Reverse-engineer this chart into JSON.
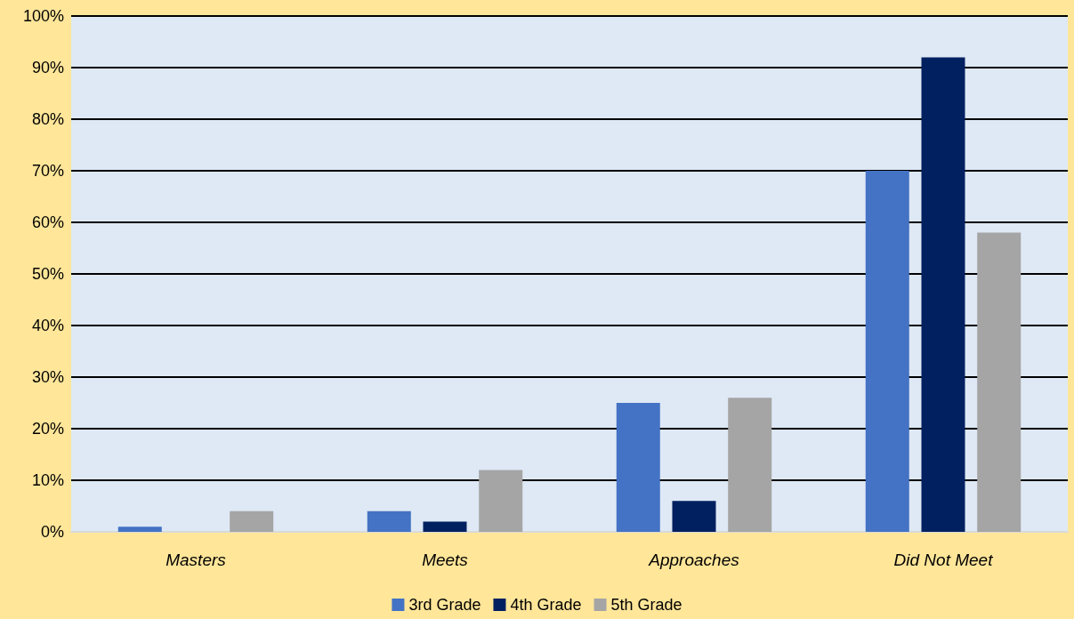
{
  "chart_data": {
    "type": "bar",
    "categories": [
      "Masters",
      "Meets",
      "Approaches",
      "Did Not Meet"
    ],
    "series": [
      {
        "name": "3rd Grade",
        "color": "#4472c4",
        "values": [
          1,
          4,
          25,
          70
        ]
      },
      {
        "name": "4th Grade",
        "color": "#002060",
        "values": [
          0,
          2,
          6,
          92
        ]
      },
      {
        "name": "5th Grade",
        "color": "#a5a5a5",
        "values": [
          4,
          12,
          26,
          58
        ]
      }
    ],
    "ylim": [
      0,
      100
    ],
    "yticks": [
      {
        "value": 0,
        "label": "0%"
      },
      {
        "value": 10,
        "label": "10%"
      },
      {
        "value": 20,
        "label": "20%"
      },
      {
        "value": 30,
        "label": "30%"
      },
      {
        "value": 40,
        "label": "40%"
      },
      {
        "value": 50,
        "label": "50%"
      },
      {
        "value": 60,
        "label": "60%"
      },
      {
        "value": 70,
        "label": "70%"
      },
      {
        "value": 80,
        "label": "80%"
      },
      {
        "value": 90,
        "label": "90%"
      },
      {
        "value": 100,
        "label": "100%"
      }
    ],
    "grid": "y",
    "legend": "bottom"
  }
}
